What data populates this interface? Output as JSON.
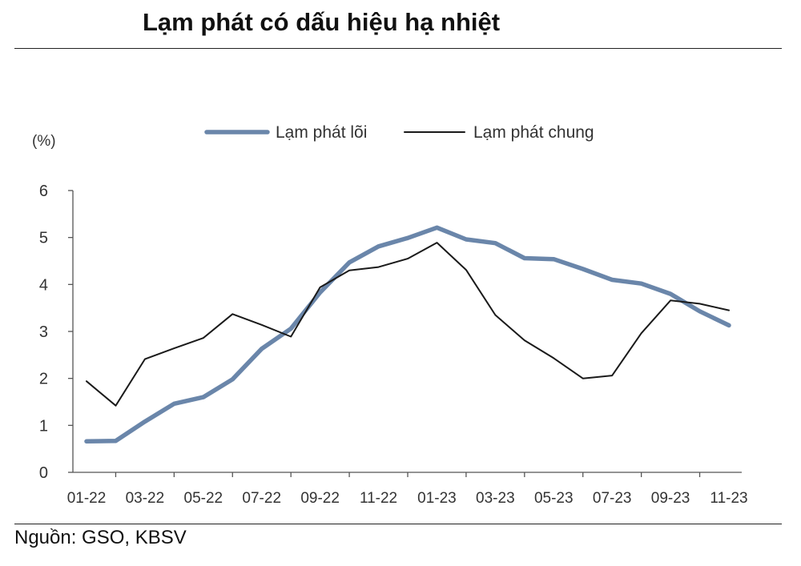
{
  "title": "Lạm phát có dấu hiệu hạ nhiệt",
  "source": "Nguồn: GSO, KBSV",
  "chart_data": {
    "type": "line",
    "ylabel": "(%)",
    "ylim": [
      0,
      6
    ],
    "yticks": [
      0,
      1,
      2,
      3,
      4,
      5,
      6
    ],
    "x": [
      "01-22",
      "02-22",
      "03-22",
      "04-22",
      "05-22",
      "06-22",
      "07-22",
      "08-22",
      "09-22",
      "10-22",
      "11-22",
      "12-22",
      "01-23",
      "02-23",
      "03-23",
      "04-23",
      "05-23",
      "06-23",
      "07-23",
      "08-23",
      "09-23",
      "10-23",
      "11-23"
    ],
    "xtick_labels": [
      "01-22",
      "03-22",
      "05-22",
      "07-22",
      "09-22",
      "11-22",
      "01-23",
      "03-23",
      "05-23",
      "07-23",
      "09-23",
      "11-23"
    ],
    "legend_position": "top",
    "series": [
      {
        "name": "Lạm phát lõi",
        "color": "#6a86aa",
        "values": [
          0.66,
          0.67,
          1.08,
          1.46,
          1.6,
          1.98,
          2.63,
          3.06,
          3.83,
          4.47,
          4.81,
          4.99,
          5.21,
          4.96,
          4.88,
          4.56,
          4.54,
          4.33,
          4.1,
          4.02,
          3.8,
          3.43,
          3.13
        ]
      },
      {
        "name": "Lạm phát chung",
        "color": "#1a1a1a",
        "values": [
          1.94,
          1.42,
          2.41,
          2.64,
          2.86,
          3.37,
          3.14,
          2.89,
          3.94,
          4.3,
          4.37,
          4.55,
          4.89,
          4.31,
          3.35,
          2.81,
          2.43,
          2.0,
          2.06,
          2.96,
          3.66,
          3.59,
          3.45
        ]
      }
    ]
  }
}
